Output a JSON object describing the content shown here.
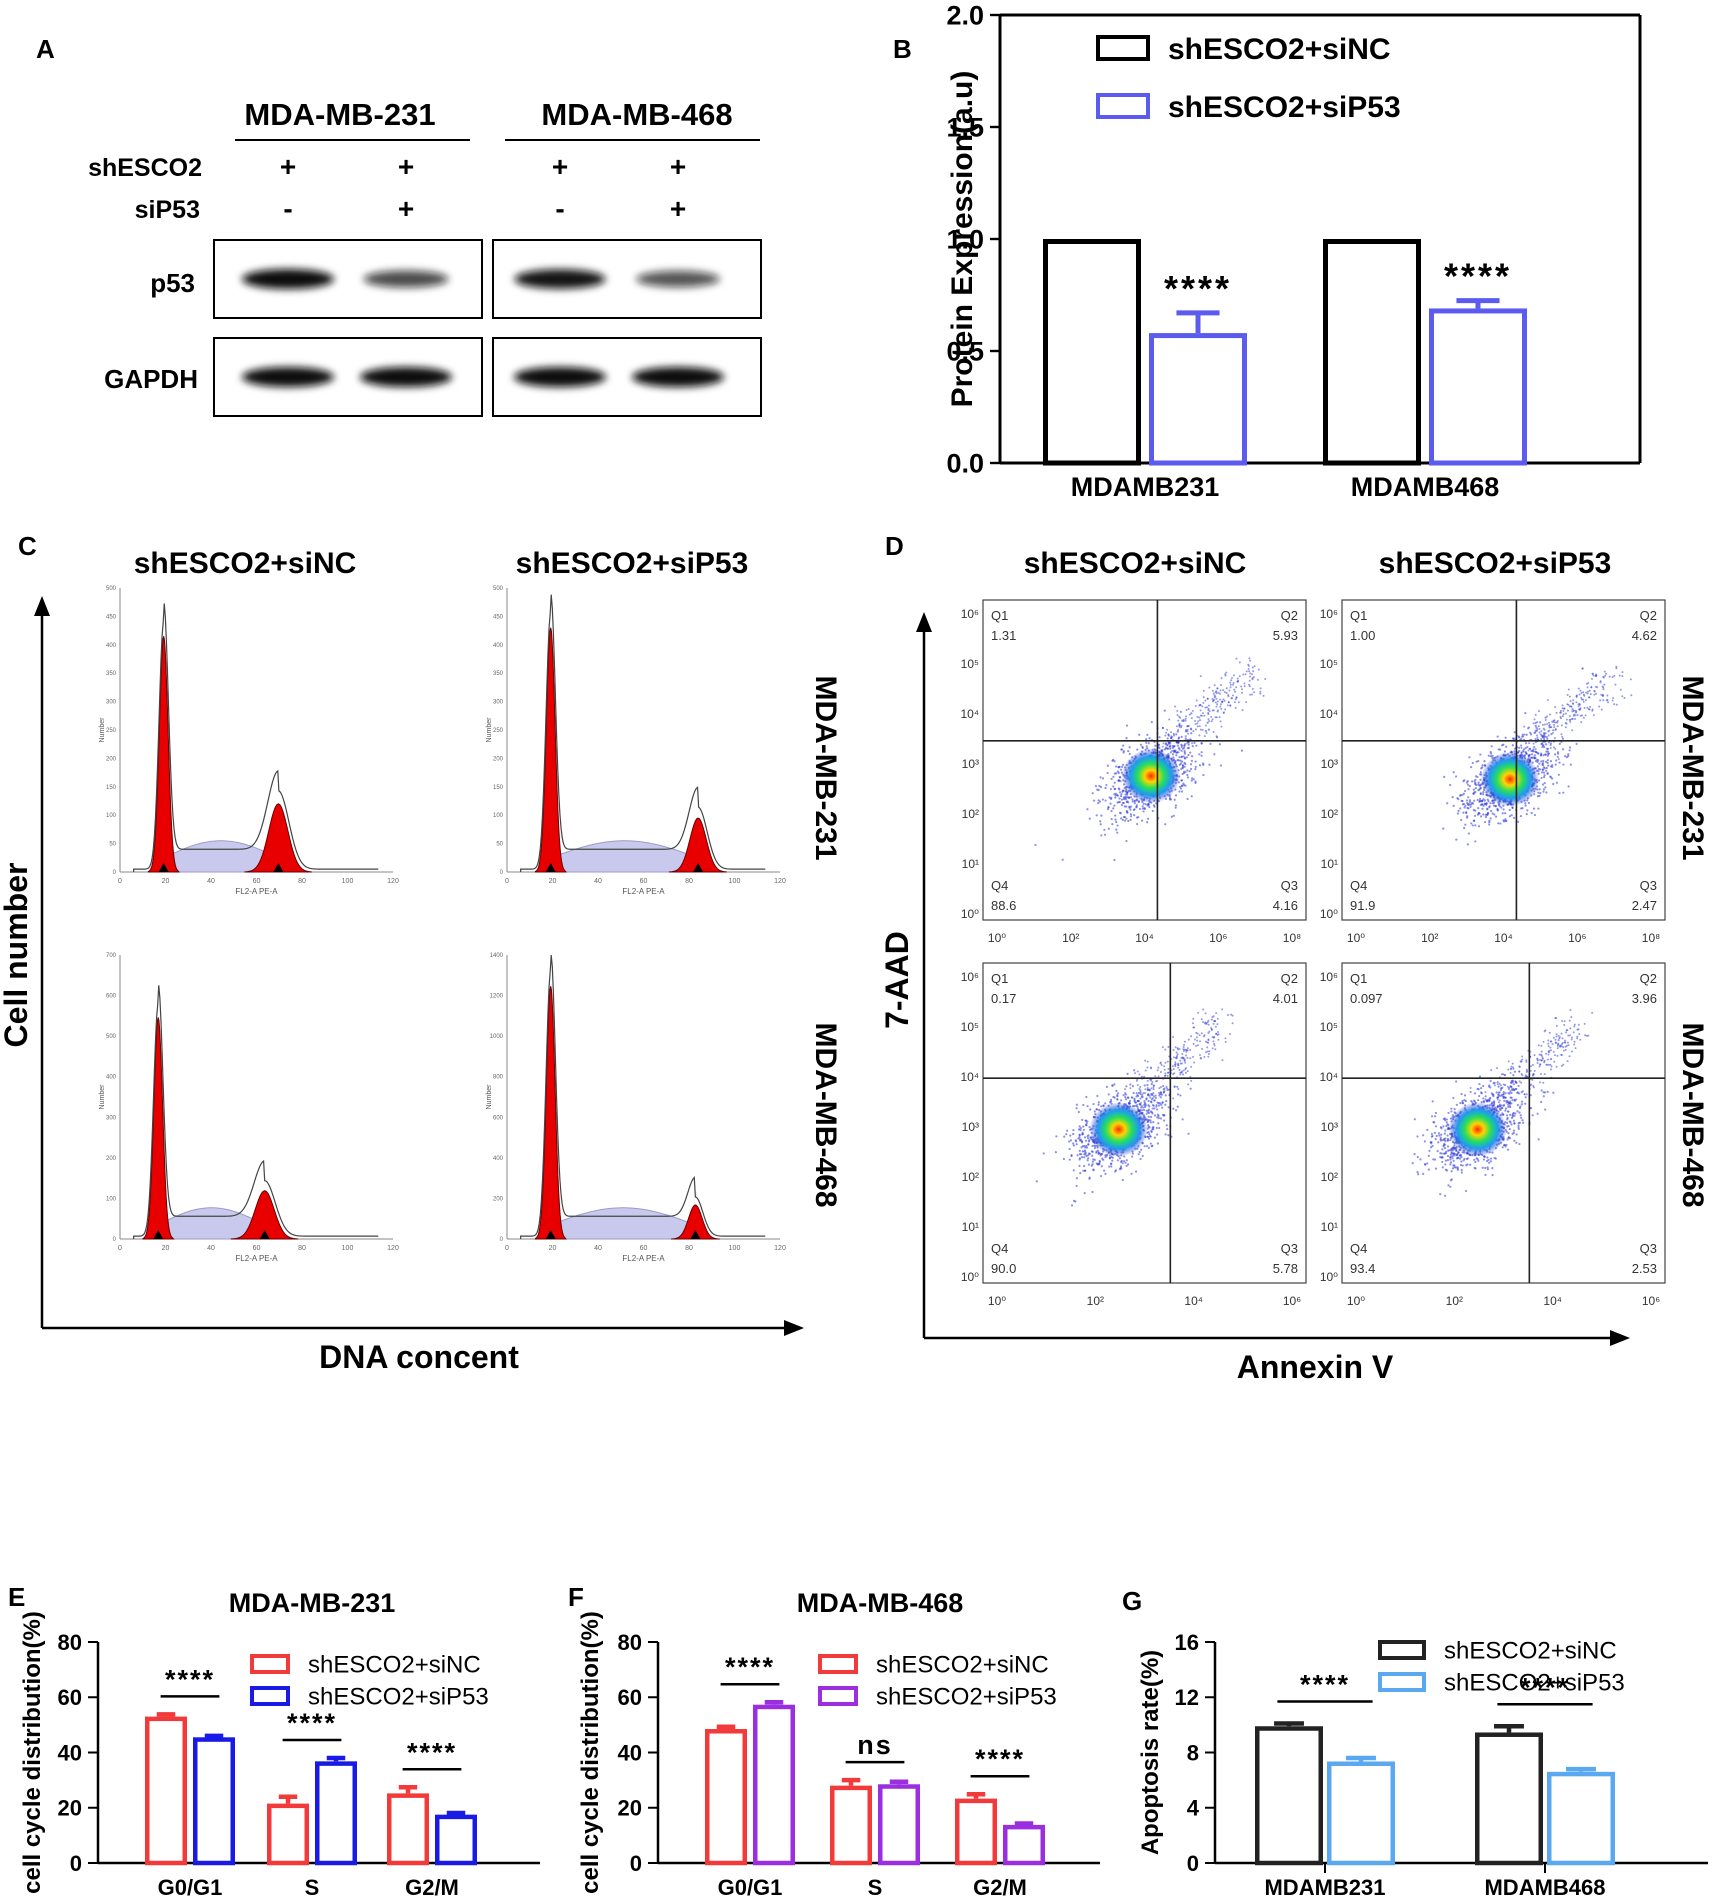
{
  "panelA": {
    "letter": "A",
    "cell_lines": [
      "MDA-MB-231",
      "MDA-MB-468"
    ],
    "row_labels": {
      "shESCO2": "shESCO2",
      "siP53": "siP53"
    },
    "signs_sh": [
      "+",
      "+",
      "+",
      "+"
    ],
    "signs_si": [
      "-",
      "+",
      "-",
      "+"
    ],
    "blot_labels": {
      "p53": "p53",
      "gapdh": "GAPDH"
    },
    "p53_intensity": [
      1.0,
      0.62,
      0.95,
      0.55
    ],
    "gapdh_intensity": [
      1.0,
      1.0,
      1.0,
      1.0
    ]
  },
  "panelC": {
    "letter": "C",
    "col_titles": [
      "shESCO2+siNC",
      "shESCO2+siP53"
    ],
    "row_titles": [
      "MDA-MB-231",
      "MDA-MB-468"
    ],
    "ylabel": "Cell number",
    "xlabel": "DNA concent",
    "hist_xlabel_top": "FL2-A PE-A",
    "hist_xlabel_bottom": "FL2-A PE-A",
    "hist_ylabel": "Number",
    "hist_xticks": [
      "0",
      "20",
      "40",
      "60",
      "80",
      "100",
      "120"
    ],
    "hist_yticks_top": [
      "0",
      "50",
      "100",
      "150",
      "200",
      "250",
      "300",
      "350",
      "400",
      "450",
      "500"
    ],
    "hist_yticks_bottom_left": [
      "0",
      "100",
      "200",
      "300",
      "400",
      "500",
      "600",
      "700"
    ],
    "hist_yticks_bottom_right": [
      "0",
      "200",
      "400",
      "600",
      "800",
      "1000",
      "1200",
      "1400"
    ]
  },
  "panelD": {
    "letter": "D",
    "col_titles": [
      "shESCO2+siNC",
      "shESCO2+siP53"
    ],
    "row_titles": [
      "MDA-MB-231",
      "MDA-MB-468"
    ],
    "ylabel": "7-AAD",
    "xlabel": "Annexin V",
    "xtick_labels_top": [
      "10⁰",
      "10²",
      "10⁴",
      "10⁶",
      "10⁸"
    ],
    "xtick_labels_bottom": [
      "10⁰",
      "10²",
      "10⁴",
      "10⁶"
    ],
    "ytick_labels": [
      "10⁰",
      "10¹",
      "10²",
      "10³",
      "10⁴",
      "10⁵",
      "10⁶"
    ],
    "plots": [
      {
        "q1": "1.31",
        "q2": "5.93",
        "q3": "4.16",
        "q4": "88.6"
      },
      {
        "q1": "1.00",
        "q2": "4.62",
        "q3": "2.47",
        "q4": "91.9"
      },
      {
        "q1": "0.17",
        "q2": "4.01",
        "q3": "5.78",
        "q4": "90.0"
      },
      {
        "q1": "0.097",
        "q2": "3.96",
        "q3": "2.53",
        "q4": "93.4"
      }
    ],
    "quad_names": [
      "Q1",
      "Q2",
      "Q3",
      "Q4"
    ]
  },
  "chart_data": [
    {
      "panel": "B",
      "type": "bar",
      "title": "",
      "ylabel": "Protein Expression(a.u)",
      "xlabel": "",
      "categories": [
        "MDAMB231",
        "MDAMB468"
      ],
      "series": [
        {
          "name": "shESCO2+siNC",
          "values": [
            1.0,
            1.0
          ],
          "errors": [
            0,
            0
          ],
          "color": "#000000"
        },
        {
          "name": "shESCO2+siP53",
          "values": [
            0.58,
            0.69
          ],
          "errors": [
            0.09,
            0.035
          ],
          "color": "#5b5bf0"
        }
      ],
      "ylim": [
        0,
        2.0
      ],
      "yticks": [
        "0.0",
        "0.5",
        "1.0",
        "1.5",
        "2.0"
      ],
      "significance": [
        "****",
        "****"
      ],
      "legend_position": "top-right"
    },
    {
      "panel": "E",
      "type": "bar",
      "title": "MDA-MB-231",
      "ylabel": "cell cycle distribution(%)",
      "xlabel": "",
      "categories": [
        "G0/G1",
        "S",
        "G2/M"
      ],
      "series": [
        {
          "name": "shESCO2+siNC",
          "values": [
            53,
            21.5,
            25.2
          ],
          "errors": [
            0.8,
            2.5,
            2.2
          ],
          "color": "#f23a3a"
        },
        {
          "name": "shESCO2+siP53",
          "values": [
            45.5,
            36.8,
            17.5
          ],
          "errors": [
            0.5,
            1.2,
            0.6
          ],
          "color": "#1a1ae6"
        }
      ],
      "ylim": [
        0,
        80
      ],
      "yticks": [
        "0",
        "20",
        "40",
        "60",
        "80"
      ],
      "significance": [
        "****",
        "****",
        "****"
      ],
      "legend_position": "top-right"
    },
    {
      "panel": "F",
      "type": "bar",
      "title": "MDA-MB-468",
      "ylabel": "cell cycle distribution(%)",
      "xlabel": "",
      "categories": [
        "G0/G1",
        "S",
        "G2/M"
      ],
      "series": [
        {
          "name": "shESCO2+siNC",
          "values": [
            48.5,
            28,
            23.3
          ],
          "errors": [
            0.8,
            2.0,
            1.6
          ],
          "color": "#f23a3a"
        },
        {
          "name": "shESCO2+siP53",
          "values": [
            57.3,
            28.5,
            13.8
          ],
          "errors": [
            0.9,
            0.9,
            0.5
          ],
          "color": "#9b2fe0"
        }
      ],
      "ylim": [
        0,
        80
      ],
      "yticks": [
        "0",
        "20",
        "40",
        "60",
        "80"
      ],
      "significance": [
        "****",
        "ns",
        "****"
      ],
      "legend_position": "top-right"
    },
    {
      "panel": "G",
      "type": "bar",
      "title": "",
      "ylabel": "Apoptosis rate(%)",
      "xlabel": "",
      "categories": [
        "MDAMB231",
        "MDAMB468"
      ],
      "series": [
        {
          "name": "shESCO2+siNC",
          "values": [
            9.9,
            9.45
          ],
          "errors": [
            0.2,
            0.45
          ],
          "color": "#222222"
        },
        {
          "name": "shESCO2+siP53",
          "values": [
            7.35,
            6.6
          ],
          "errors": [
            0.25,
            0.2
          ],
          "color": "#5aa8f0"
        }
      ],
      "ylim": [
        0,
        16
      ],
      "yticks": [
        "0",
        "4",
        "8",
        "12",
        "16"
      ],
      "significance": [
        "****",
        "****"
      ],
      "legend_position": "top-right"
    }
  ]
}
